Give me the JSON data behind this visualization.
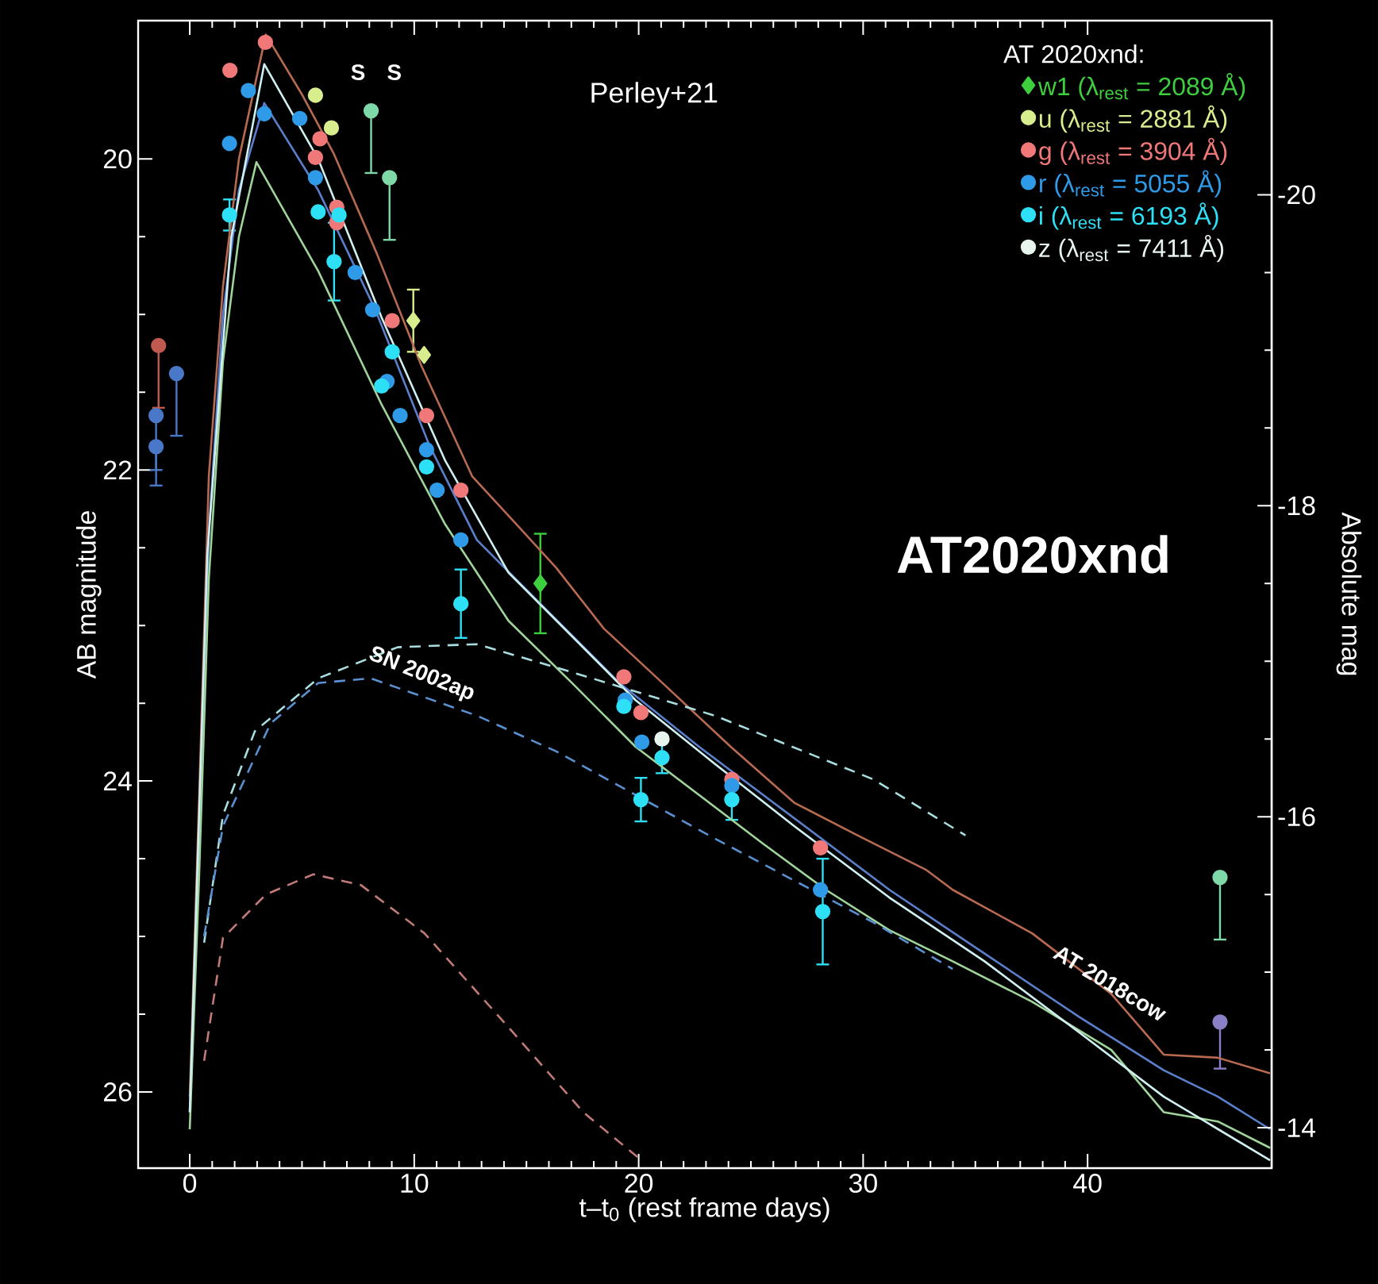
{
  "chart_data": {
    "type": "scatter",
    "xlabel": "t–t$_{0}$ (rest frame days)",
    "ylabel": "AB magnitude",
    "y2label": "Absolute mag",
    "legend_title": "AT 2020xnd:",
    "legend": "top right",
    "xlim": [
      -2.3,
      48.2
    ],
    "xticks": [
      0,
      10,
      20,
      30,
      40
    ],
    "ylim": [
      26.49,
      19.11
    ],
    "yticks": [
      20,
      22,
      24,
      26
    ],
    "y2lim": [
      -13.74,
      -21.12
    ],
    "y2ticks": [
      -20,
      -18,
      -16,
      -14
    ],
    "annotations": [
      "Perley+21",
      "AT2020xnd",
      "SN 2002ap",
      {
        "text": "AT 2018cow",
        "x": 41.0,
        "y": 25.3
      },
      "S",
      "S"
    ],
    "series": [
      {
        "name": "w1  (λ$_{rest}$ = 2089 Å)",
        "color": "#3ecf3e",
        "marker": "diamond",
        "x": [
          15.62
        ],
        "values": [
          22.73
        ],
        "errors": [
          0.32
        ]
      },
      {
        "name": "u   (λ$_{rest}$ = 2881 Å)",
        "color": "#d8ee8e",
        "marker": "circle",
        "x": [
          5.6,
          6.31
        ],
        "values": [
          19.59,
          19.8
        ]
      },
      {
        "name": "g   (λ$_{rest}$ = 3904 Å)",
        "color": "#f07878",
        "marker": "circle",
        "x": [
          1.79,
          3.37,
          5.8,
          5.6,
          6.55,
          6.55,
          9.02,
          10.55,
          12.08,
          19.34,
          20.1,
          24.15,
          28.1
        ],
        "values": [
          19.43,
          19.25,
          19.87,
          19.99,
          20.31,
          20.41,
          21.04,
          21.65,
          22.13,
          23.33,
          23.56,
          23.99,
          24.43
        ]
      },
      {
        "name": "r    (λ$_{rest}$ = 5055 Å)",
        "color": "#2f9be8",
        "marker": "circle",
        "x": [
          1.77,
          2.61,
          3.32,
          4.9,
          5.6,
          7.37,
          8.15,
          8.79,
          9.37,
          10.55,
          11.02,
          12.08,
          19.4,
          20.14,
          24.15,
          28.1
        ],
        "values": [
          19.9,
          19.56,
          19.71,
          19.74,
          20.12,
          20.73,
          20.97,
          21.43,
          21.65,
          21.87,
          22.13,
          22.45,
          23.48,
          23.75,
          24.03,
          24.7
        ]
      },
      {
        "name": "i    (λ$_{rest}$ = 6193 Å)",
        "color": "#2ee0f5",
        "marker": "circle",
        "x": [
          1.77,
          5.72,
          6.43,
          6.65,
          8.55,
          9.02,
          10.55,
          12.08,
          19.34,
          20.1,
          21.04,
          24.15,
          28.2
        ],
        "values": [
          20.36,
          20.34,
          20.66,
          20.36,
          21.46,
          21.24,
          21.98,
          22.86,
          23.52,
          24.12,
          23.85,
          24.12,
          24.84
        ],
        "errors": [
          0.1,
          null,
          0.25,
          null,
          null,
          null,
          null,
          0.22,
          null,
          0.14,
          0.1,
          0.13,
          0.34
        ]
      },
      {
        "name": "z   (λ$_{rest}$ = 7411 Å)",
        "color": "#e8f5ee",
        "marker": "circle",
        "x": [
          21.04
        ],
        "values": [
          23.73
        ]
      },
      {
        "color": "#d8ee8e",
        "marker": "diamond",
        "x": [
          9.96,
          10.44
        ],
        "values": [
          21.04,
          21.26
        ],
        "errors": [
          0.2,
          null
        ]
      },
      {
        "color": "#c05a50",
        "marker": "circle",
        "x": [
          -1.39
        ],
        "values": [
          21.2
        ],
        "errors": [
          [
            21.2,
            21.6
          ]
        ]
      },
      {
        "color": "#4a78c8",
        "marker": "circle",
        "x": [
          -0.59,
          -1.5,
          -1.5
        ],
        "values": [
          21.38,
          21.65,
          21.85
        ],
        "errors": [
          [
            21.38,
            21.78
          ],
          [
            21.65,
            22.0
          ],
          [
            21.85,
            22.1
          ]
        ]
      },
      {
        "color": "#7fd8a8",
        "marker": "circle",
        "x": [
          8.08,
          8.9,
          45.9
        ],
        "values": [
          19.69,
          20.12,
          24.62
        ],
        "errors": [
          [
            19.69,
            20.09
          ],
          [
            20.12,
            20.52
          ],
          [
            24.62,
            25.02
          ]
        ]
      },
      {
        "color": "#8a80c8",
        "marker": "circle",
        "x": [
          45.9
        ],
        "values": [
          25.55
        ],
        "errors": [
          [
            25.55,
            25.85
          ]
        ]
      },
      {
        "type": "line",
        "color": "#b86a50",
        "marker": "none",
        "line_style": "solid",
        "x": [
          0,
          0.42,
          0.85,
          1.48,
          2.19,
          3.39,
          5.02,
          6.43,
          8.34,
          10.32,
          12.58,
          14.56,
          16.33,
          18.45,
          21.06,
          24.1,
          26.93,
          29.75,
          32.79,
          33.99,
          37.53,
          41.06,
          43.39,
          45.8,
          48.13
        ],
        "values": [
          26.03,
          24.09,
          22.04,
          20.82,
          20.0,
          19.2,
          19.59,
          19.97,
          20.61,
          21.33,
          22.04,
          22.35,
          22.63,
          23.02,
          23.37,
          23.78,
          24.14,
          24.35,
          24.57,
          24.7,
          24.98,
          25.37,
          25.76,
          25.78,
          25.88
        ]
      },
      {
        "type": "line",
        "color": "#5a7fcc",
        "marker": "none",
        "line_style": "solid",
        "x": [
          0,
          0.42,
          0.85,
          1.48,
          2.19,
          3.32,
          5.72,
          8.27,
          10.67,
          12.79,
          15.62,
          19.15,
          22.69,
          26.93,
          31.17,
          35.41,
          39.65,
          43.39,
          45.8,
          48.13
        ],
        "values": [
          26.13,
          24.3,
          22.4,
          21.0,
          20.2,
          19.64,
          20.2,
          20.97,
          21.84,
          22.45,
          22.86,
          23.37,
          23.78,
          24.24,
          24.7,
          25.11,
          25.52,
          25.86,
          26.03,
          26.24
        ]
      },
      {
        "type": "line",
        "color": "#9fd49a",
        "marker": "none",
        "line_style": "solid",
        "x": [
          0,
          0.42,
          0.85,
          1.48,
          2.19,
          2.97,
          5.72,
          8.55,
          11.38,
          14.2,
          17.03,
          19.86,
          22.69,
          25.51,
          28.34,
          31.17,
          33.99,
          37.53,
          41.06,
          43.39,
          45.8,
          48.13
        ],
        "values": [
          26.24,
          24.6,
          22.7,
          21.3,
          20.5,
          20.02,
          20.72,
          21.58,
          22.35,
          22.97,
          23.37,
          23.78,
          24.09,
          24.4,
          24.7,
          24.96,
          25.16,
          25.42,
          25.73,
          26.13,
          26.19,
          26.36
        ]
      },
      {
        "type": "line",
        "color": "#cfeff0",
        "marker": "none",
        "line_style": "solid",
        "x": [
          0,
          0.78,
          1.84,
          3.32,
          5.72,
          8.55,
          11.38,
          14.2,
          17.03,
          19.86,
          23.39,
          26.93,
          31.17,
          35.41,
          39.65,
          43.39,
          48.13
        ],
        "values": [
          26.13,
          22.55,
          20.51,
          19.39,
          20.0,
          21.02,
          21.94,
          22.66,
          23.07,
          23.48,
          23.89,
          24.29,
          24.75,
          25.16,
          25.62,
          26.03,
          26.44
        ]
      },
      {
        "type": "line",
        "color": "#a8dde0",
        "marker": "none",
        "line_style": "dashed",
        "x": [
          0.64,
          1.48,
          2.9,
          5.72,
          9.26,
          12.79,
          16.33,
          23.39,
          30.46,
          34.56
        ],
        "values": [
          25.04,
          24.22,
          23.68,
          23.34,
          23.14,
          23.12,
          23.27,
          23.58,
          23.99,
          24.35
        ]
      },
      {
        "type": "line",
        "color": "#5a8fd0",
        "marker": "none",
        "line_style": "dashed",
        "x": [
          0.64,
          1.48,
          3.6,
          5.72,
          8.06,
          12.79,
          16.33,
          19.86,
          23.39,
          30.46,
          33.99
        ],
        "values": [
          25.0,
          24.29,
          23.63,
          23.37,
          23.34,
          23.58,
          23.81,
          24.09,
          24.37,
          24.91,
          25.21
        ]
      },
      {
        "type": "line",
        "color": "#c07a78",
        "marker": "none",
        "line_style": "dashed",
        "x": [
          0.64,
          1.48,
          3.39,
          5.51,
          7.63,
          10.46,
          13.99,
          17.53,
          20.21
        ],
        "values": [
          25.8,
          25.01,
          24.73,
          24.6,
          24.67,
          24.98,
          25.55,
          26.13,
          26.45
        ]
      }
    ]
  }
}
